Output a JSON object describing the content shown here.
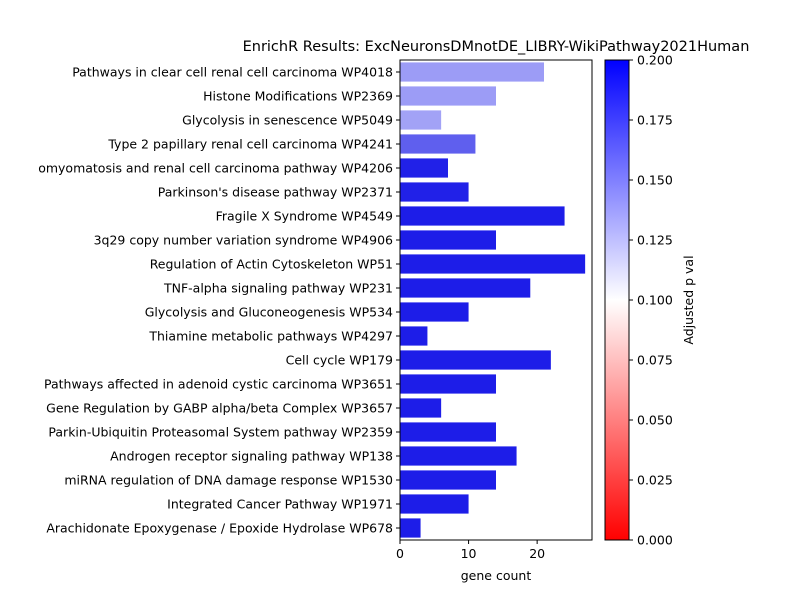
{
  "chart_data": {
    "type": "bar",
    "orientation": "horizontal",
    "title": "EnrichR Results: ExcNeuronsDMnotDE_LIBRY-WikiPathway2021Human",
    "xlabel": "gene count",
    "ylabel": "",
    "xlim": [
      0,
      28
    ],
    "xticks": [
      "0",
      "10",
      "20"
    ],
    "grid": false,
    "categories": [
      "Pathways in clear cell renal cell carcinoma WP4018",
      "Histone Modifications WP2369",
      "Glycolysis in senescence WP5049",
      "Type 2 papillary renal cell carcinoma WP4241",
      "omyomatosis and renal cell carcinoma pathway WP4206",
      "Parkinson's disease pathway WP2371",
      "Fragile X Syndrome  WP4549",
      "3q29 copy number variation syndrome WP4906",
      "Regulation of Actin Cytoskeleton WP51",
      "TNF-alpha signaling pathway WP231",
      "Glycolysis and Gluconeogenesis WP534",
      "Thiamine metabolic pathways WP4297",
      "Cell cycle WP179",
      "Pathways affected in adenoid cystic carcinoma WP3651",
      "Gene Regulation by GABP alpha/beta Complex WP3657",
      "Parkin-Ubiquitin Proteasomal System pathway WP2359",
      "Androgen receptor signaling pathway WP138",
      "miRNA regulation of DNA damage response WP1530",
      "Integrated Cancer Pathway WP1971",
      "Arachidonate Epoxygenase / Epoxide Hydrolase WP678"
    ],
    "values": [
      21,
      14,
      6,
      11,
      7,
      10,
      24,
      14,
      27,
      19,
      10,
      4,
      22,
      14,
      6,
      14,
      17,
      14,
      10,
      3
    ],
    "colors": [
      "#9c9cf6",
      "#9c9cf6",
      "#a2a2f6",
      "#5f5fee",
      "#2121e8",
      "#2121e8",
      "#1d1de8",
      "#1d1de8",
      "#1d1de8",
      "#1d1de8",
      "#1d1de8",
      "#1d1de8",
      "#1d1de8",
      "#1d1de8",
      "#1d1de8",
      "#1d1de8",
      "#1d1de8",
      "#1d1de8",
      "#1d1de8",
      "#1d1de8"
    ],
    "colorbar": {
      "label": "Adjusted p val",
      "range": [
        0,
        0.2
      ],
      "ticks": [
        "0.000",
        "0.025",
        "0.050",
        "0.075",
        "0.100",
        "0.125",
        "0.150",
        "0.175",
        "0.200"
      ],
      "colormap": [
        "#ff0000",
        "#ffffff",
        "#0000ff"
      ]
    }
  }
}
